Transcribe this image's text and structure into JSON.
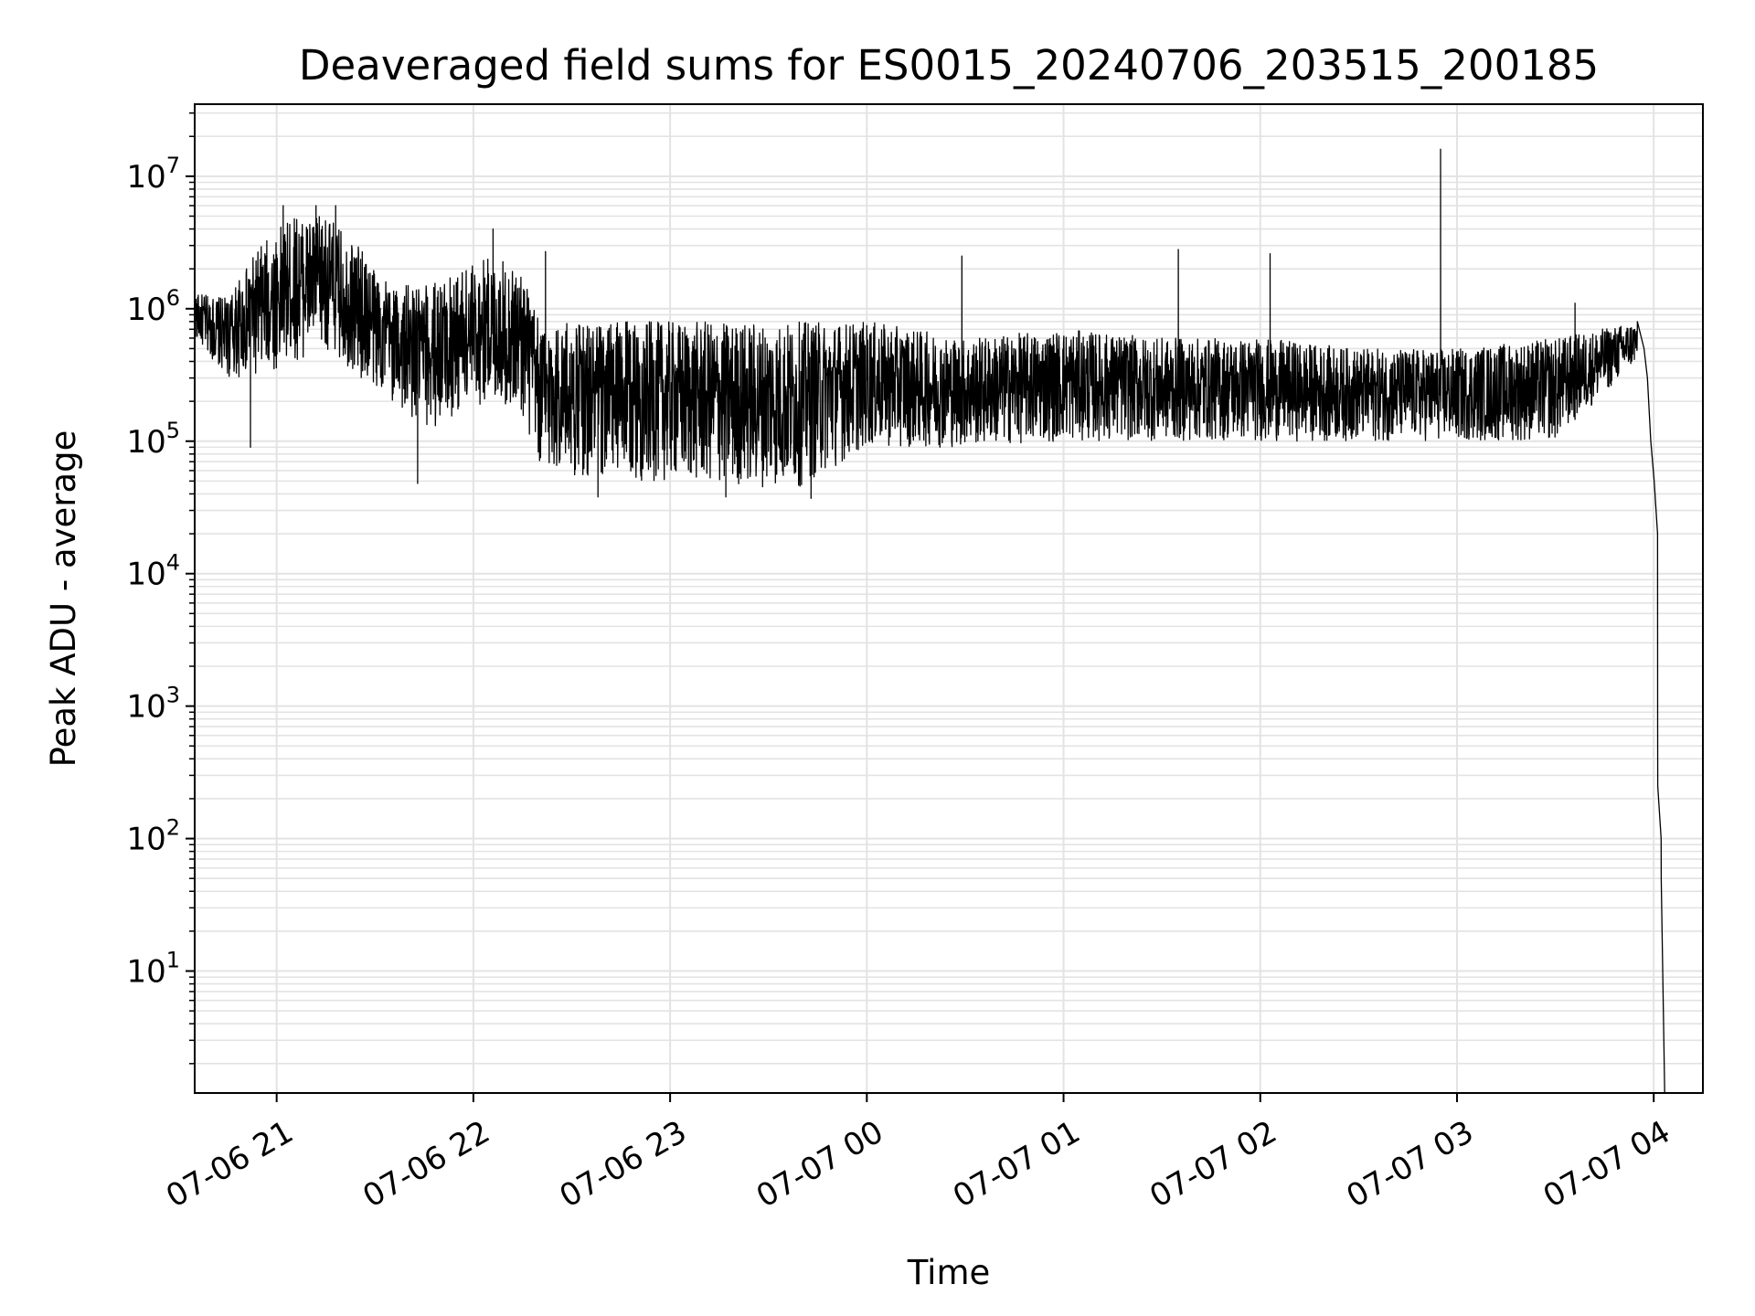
{
  "chart_data": {
    "type": "line",
    "title": "Deaveraged field sums for ES0015_20240706_203515_200185",
    "xlabel": "Time",
    "ylabel": "Peak ADU - average",
    "y_scale": "log",
    "ylim": [
      1.2,
      35000000
    ],
    "xlim": [
      "2024-07-06 20:35",
      "2024-07-07 04:15"
    ],
    "grid": true,
    "x_ticks": [
      {
        "value": "2024-07-06 21:00",
        "label": "07-06 21"
      },
      {
        "value": "2024-07-06 22:00",
        "label": "07-06 22"
      },
      {
        "value": "2024-07-06 23:00",
        "label": "07-06 23"
      },
      {
        "value": "2024-07-07 00:00",
        "label": "07-07 00"
      },
      {
        "value": "2024-07-07 01:00",
        "label": "07-07 01"
      },
      {
        "value": "2024-07-07 02:00",
        "label": "07-07 02"
      },
      {
        "value": "2024-07-07 03:00",
        "label": "07-07 03"
      },
      {
        "value": "2024-07-07 04:00",
        "label": "07-07 04"
      }
    ],
    "y_ticks": [
      {
        "value": 10,
        "base": "10",
        "exp": "1"
      },
      {
        "value": 100,
        "base": "10",
        "exp": "2"
      },
      {
        "value": 1000,
        "base": "10",
        "exp": "3"
      },
      {
        "value": 10000,
        "base": "10",
        "exp": "4"
      },
      {
        "value": 100000,
        "base": "10",
        "exp": "5"
      },
      {
        "value": 1000000,
        "base": "10",
        "exp": "6"
      },
      {
        "value": 10000000,
        "base": "10",
        "exp": "7"
      }
    ],
    "series": [
      {
        "color": "#000000",
        "profile": [
          {
            "t": "2024-07-06 20:35",
            "lo": 600000,
            "hi": 1300000
          },
          {
            "t": "2024-07-06 20:45",
            "lo": 300000,
            "hi": 1200000
          },
          {
            "t": "2024-07-06 20:55",
            "lo": 300000,
            "hi": 3000000
          },
          {
            "t": "2024-07-06 21:05",
            "lo": 400000,
            "hi": 5000000
          },
          {
            "t": "2024-07-06 21:15",
            "lo": 500000,
            "hi": 5000000
          },
          {
            "t": "2024-07-06 21:25",
            "lo": 300000,
            "hi": 3000000
          },
          {
            "t": "2024-07-06 21:35",
            "lo": 200000,
            "hi": 1500000
          },
          {
            "t": "2024-07-06 21:45",
            "lo": 120000,
            "hi": 1500000
          },
          {
            "t": "2024-07-06 21:55",
            "lo": 150000,
            "hi": 2000000
          },
          {
            "t": "2024-07-06 22:05",
            "lo": 200000,
            "hi": 2500000
          },
          {
            "t": "2024-07-06 22:15",
            "lo": 150000,
            "hi": 2000000
          },
          {
            "t": "2024-07-06 22:20",
            "lo": 60000,
            "hi": 800000
          },
          {
            "t": "2024-07-06 22:40",
            "lo": 50000,
            "hi": 800000
          },
          {
            "t": "2024-07-06 23:00",
            "lo": 50000,
            "hi": 800000
          },
          {
            "t": "2024-07-06 23:20",
            "lo": 45000,
            "hi": 800000
          },
          {
            "t": "2024-07-06 23:40",
            "lo": 45000,
            "hi": 800000
          },
          {
            "t": "2024-07-07 00:00",
            "lo": 90000,
            "hi": 800000
          },
          {
            "t": "2024-07-07 00:30",
            "lo": 90000,
            "hi": 600000
          },
          {
            "t": "2024-07-07 01:00",
            "lo": 100000,
            "hi": 700000
          },
          {
            "t": "2024-07-07 01:30",
            "lo": 100000,
            "hi": 600000
          },
          {
            "t": "2024-07-07 02:00",
            "lo": 100000,
            "hi": 600000
          },
          {
            "t": "2024-07-07 02:30",
            "lo": 100000,
            "hi": 500000
          },
          {
            "t": "2024-07-07 03:00",
            "lo": 100000,
            "hi": 500000
          },
          {
            "t": "2024-07-07 03:30",
            "lo": 100000,
            "hi": 600000
          },
          {
            "t": "2024-07-07 03:55",
            "lo": 400000,
            "hi": 800000
          }
        ],
        "spikes": [
          {
            "t": "2024-07-06 20:57",
            "y": 3000000
          },
          {
            "t": "2024-07-06 21:02",
            "y": 6000000
          },
          {
            "t": "2024-07-06 21:12",
            "y": 6000000
          },
          {
            "t": "2024-07-06 21:18",
            "y": 6000000
          },
          {
            "t": "2024-07-06 22:06",
            "y": 4000000
          },
          {
            "t": "2024-07-06 22:22",
            "y": 2700000
          },
          {
            "t": "2024-07-07 00:29",
            "y": 2500000
          },
          {
            "t": "2024-07-07 01:35",
            "y": 2800000
          },
          {
            "t": "2024-07-07 02:03",
            "y": 2600000
          },
          {
            "t": "2024-07-07 02:55",
            "y": 16000000
          },
          {
            "t": "2024-07-07 03:36",
            "y": 1100000
          }
        ],
        "dips": [
          {
            "t": "2024-07-06 20:52",
            "y": 90000
          },
          {
            "t": "2024-07-06 21:43",
            "y": 48000
          },
          {
            "t": "2024-07-06 22:38",
            "y": 38000
          },
          {
            "t": "2024-07-06 23:17",
            "y": 38000
          },
          {
            "t": "2024-07-06 23:43",
            "y": 37000
          }
        ],
        "tail": [
          {
            "t": "2024-07-07 03:55",
            "y": 800000
          },
          {
            "t": "2024-07-07 03:57",
            "y": 500000
          },
          {
            "t": "2024-07-07 03:58",
            "y": 300000
          },
          {
            "t": "2024-07-07 03:59",
            "y": 100000
          },
          {
            "t": "2024-07-07 04:00",
            "y": 50000
          },
          {
            "t": "2024-07-07 04:01",
            "y": 20000
          },
          {
            "t": "2024-07-07 04:01",
            "y": 700
          },
          {
            "t": "2024-07-07 04:01",
            "y": 250
          },
          {
            "t": "2024-07-07 04:02",
            "y": 100
          },
          {
            "t": "2024-07-07 04:02",
            "y": 50
          },
          {
            "t": "2024-07-07 04:03",
            "y": 1.2
          }
        ]
      }
    ]
  }
}
